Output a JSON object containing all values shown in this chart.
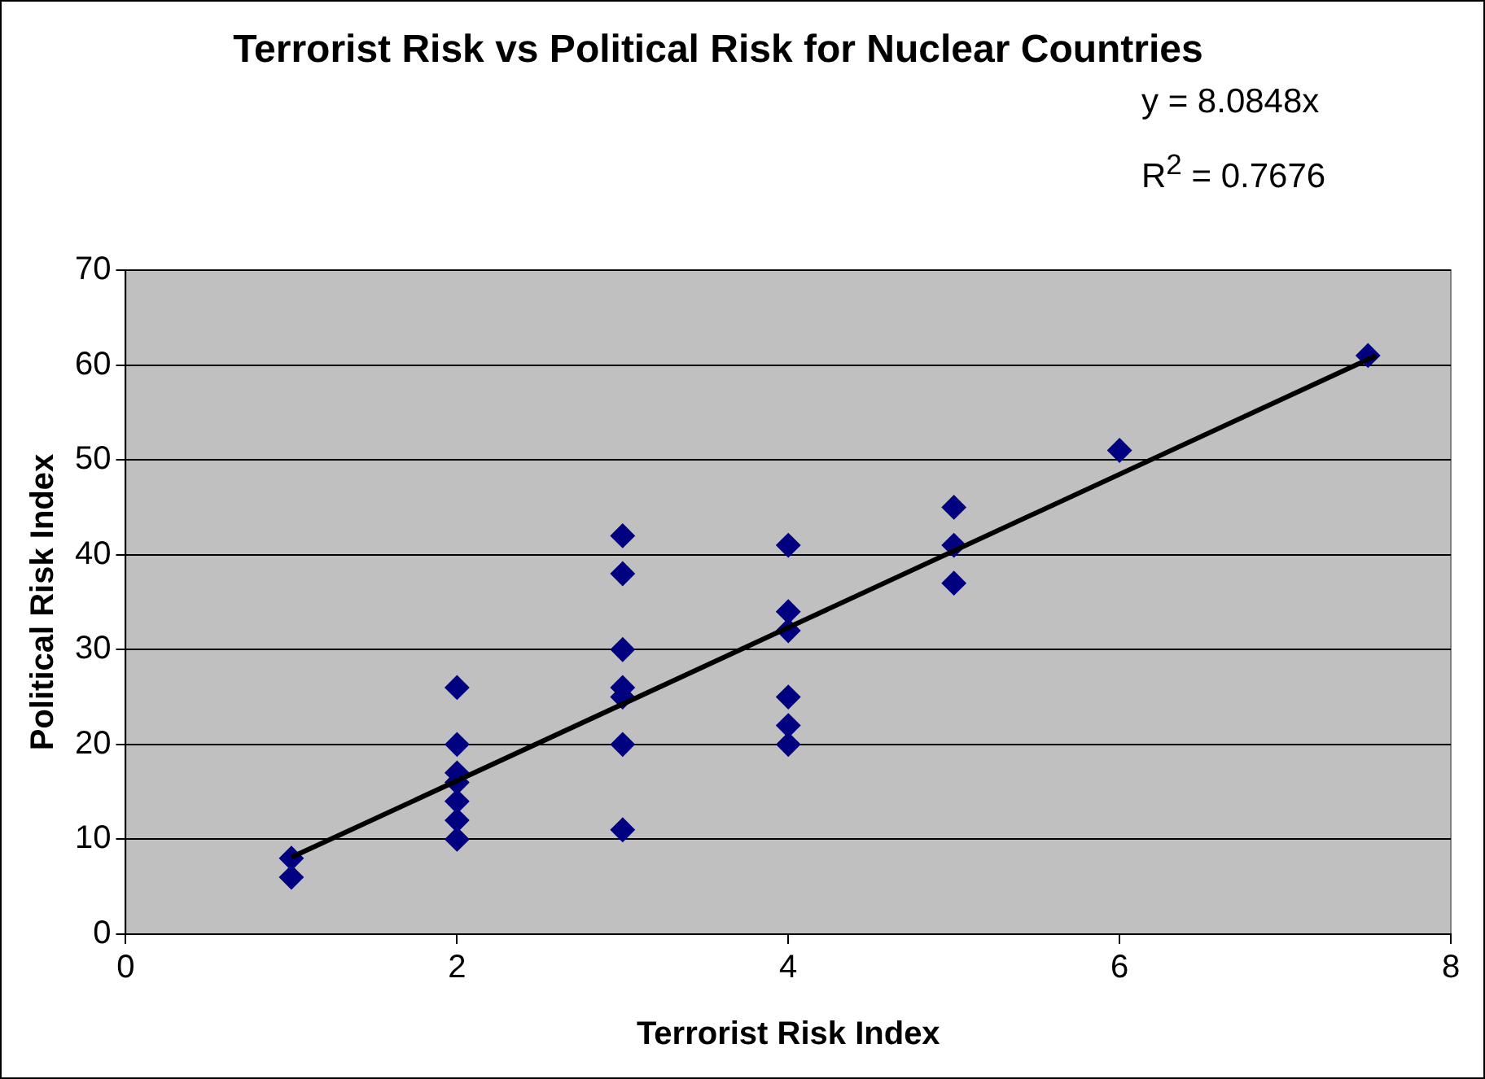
{
  "chart_data": {
    "type": "scatter",
    "title": "Terrorist Risk vs Political Risk for Nuclear Countries",
    "xlabel": "Terrorist Risk Index",
    "ylabel": "Political Risk Index",
    "annotations": [
      "y = 8.0848x",
      "R$^{2}$ = 0.7676"
    ],
    "series": [
      {
        "color": "#000080",
        "marker": "diamond",
        "x": [
          1,
          1,
          2,
          2,
          2,
          2,
          2,
          2,
          2,
          3,
          3,
          3,
          3,
          3,
          3,
          3,
          4,
          4,
          4,
          4,
          4,
          4,
          5,
          5,
          5,
          6,
          7.5
        ],
        "values": [
          8,
          6,
          26,
          20,
          17,
          16,
          14,
          12,
          10,
          42,
          38,
          30,
          26,
          25,
          20,
          11,
          41,
          34,
          32,
          25,
          22,
          20,
          45,
          41,
          37,
          51,
          61
        ]
      },
      {
        "type": "line",
        "color": "#000000",
        "marker": "none",
        "x": [
          1,
          7.55
        ],
        "values": [
          8.1,
          61
        ]
      }
    ],
    "xlim": [
      0,
      8
    ],
    "xticks": [
      0,
      2,
      4,
      6,
      8
    ],
    "ylim": [
      0,
      70
    ],
    "yticks": [
      0,
      10,
      20,
      30,
      40,
      50,
      60,
      70
    ],
    "grid": "y",
    "legend": false
  }
}
